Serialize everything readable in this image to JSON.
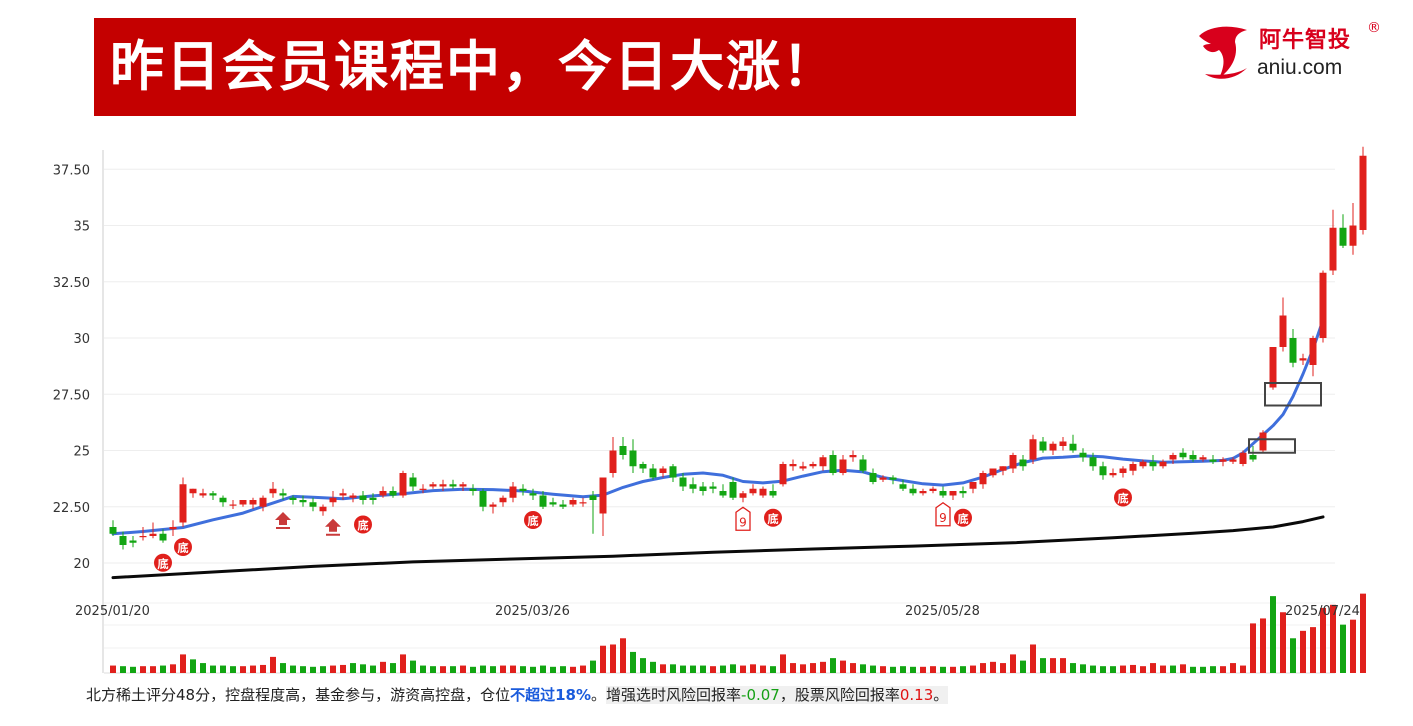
{
  "banner": {
    "title": "昨日会员课程中，今日大涨！"
  },
  "logo": {
    "name": "阿牛智投",
    "reg": "®",
    "url": "aniu.com",
    "icon": "bull-head-icon"
  },
  "colors": {
    "up": "#e0201c",
    "down": "#12a512",
    "ma_short": "#3f6fdc",
    "ma_long": "#0a0a0a",
    "banner": "#c40000"
  },
  "footer": {
    "p1": "北方稀土评分48分，控盘程度高，基金参与，游资高控盘，仓位",
    "highlight": "不超过18%",
    "p2": "。",
    "p3": "增强选时风险回报率",
    "v1": "-0.07",
    "p4": "，股票风险回报率",
    "v2": "0.13",
    "p5": "。"
  },
  "chart_data": {
    "type": "candlestick",
    "y_ticks": [
      "37.50",
      "35",
      "32.50",
      "30",
      "27.50",
      "25",
      "22.50",
      "20"
    ],
    "y_tick_values": [
      37.5,
      35,
      32.5,
      30,
      27.5,
      25,
      22.5,
      20
    ],
    "ylim": [
      18.8,
      38.8
    ],
    "x_labels": [
      {
        "label": "2025/01/20",
        "index": 0
      },
      {
        "label": "2025/03/26",
        "index": 42
      },
      {
        "label": "2025/05/28",
        "index": 83
      },
      {
        "label": "2025/07/24",
        "index": 121
      }
    ],
    "candles": [
      [
        21.6,
        21.9,
        21.3,
        21.2
      ],
      [
        21.2,
        21.4,
        20.8,
        20.6
      ],
      [
        21.0,
        21.2,
        20.9,
        20.7
      ],
      [
        21.2,
        21.6,
        21.2,
        21.0
      ],
      [
        21.2,
        21.8,
        21.3,
        21.1
      ],
      [
        21.3,
        21.5,
        21.0,
        20.9
      ],
      [
        21.5,
        21.9,
        21.6,
        21.2
      ],
      [
        21.8,
        23.8,
        23.5,
        21.6
      ],
      [
        23.1,
        23.3,
        23.3,
        22.9
      ],
      [
        23.0,
        23.3,
        23.1,
        22.9
      ],
      [
        23.1,
        23.2,
        23.0,
        22.8
      ],
      [
        22.9,
        23.0,
        22.7,
        22.5
      ],
      [
        22.6,
        22.8,
        22.6,
        22.4
      ],
      [
        22.6,
        22.8,
        22.8,
        22.5
      ],
      [
        22.6,
        22.9,
        22.8,
        22.4
      ],
      [
        22.5,
        23.0,
        22.9,
        22.3
      ],
      [
        23.1,
        23.6,
        23.3,
        22.9
      ],
      [
        23.1,
        23.3,
        23.0,
        22.8
      ],
      [
        22.9,
        23.0,
        22.8,
        22.6
      ],
      [
        22.8,
        23.0,
        22.7,
        22.5
      ],
      [
        22.7,
        22.9,
        22.5,
        22.3
      ],
      [
        22.3,
        22.6,
        22.5,
        22.1
      ],
      [
        22.7,
        23.2,
        22.9,
        22.5
      ],
      [
        23.0,
        23.3,
        23.1,
        22.8
      ],
      [
        22.9,
        23.1,
        23.0,
        22.7
      ],
      [
        23.0,
        23.2,
        22.8,
        22.6
      ],
      [
        22.9,
        23.1,
        22.8,
        22.6
      ],
      [
        23.0,
        23.4,
        23.2,
        22.9
      ],
      [
        23.2,
        23.4,
        23.0,
        22.9
      ],
      [
        23.0,
        24.1,
        24.0,
        22.9
      ],
      [
        23.8,
        24.0,
        23.4,
        23.2
      ],
      [
        23.3,
        23.5,
        23.3,
        23.1
      ],
      [
        23.4,
        23.6,
        23.5,
        23.3
      ],
      [
        23.4,
        23.7,
        23.5,
        23.2
      ],
      [
        23.5,
        23.7,
        23.4,
        23.3
      ],
      [
        23.4,
        23.6,
        23.5,
        23.2
      ],
      [
        23.3,
        23.5,
        23.2,
        23.0
      ],
      [
        23.2,
        23.3,
        22.5,
        22.3
      ],
      [
        22.5,
        22.7,
        22.6,
        22.2
      ],
      [
        22.7,
        23.0,
        22.9,
        22.5
      ],
      [
        22.9,
        23.6,
        23.4,
        22.7
      ],
      [
        23.3,
        23.5,
        23.2,
        23.0
      ],
      [
        23.1,
        23.3,
        23.0,
        22.8
      ],
      [
        23.0,
        23.2,
        22.5,
        22.4
      ],
      [
        22.7,
        22.9,
        22.6,
        22.5
      ],
      [
        22.6,
        22.8,
        22.5,
        22.4
      ],
      [
        22.6,
        22.9,
        22.8,
        22.5
      ],
      [
        22.7,
        22.9,
        22.7,
        22.5
      ],
      [
        23.0,
        23.2,
        22.8,
        21.3
      ],
      [
        22.2,
        23.8,
        23.8,
        21.2
      ],
      [
        24.0,
        25.6,
        25.0,
        23.8
      ],
      [
        25.2,
        25.6,
        24.8,
        24.6
      ],
      [
        25.0,
        25.5,
        24.3,
        24.0
      ],
      [
        24.4,
        24.5,
        24.2,
        24.0
      ],
      [
        24.2,
        24.4,
        23.8,
        23.7
      ],
      [
        24.0,
        24.3,
        24.2,
        23.8
      ],
      [
        24.3,
        24.4,
        23.8,
        23.6
      ],
      [
        23.8,
        24.0,
        23.4,
        23.2
      ],
      [
        23.5,
        23.8,
        23.3,
        23.1
      ],
      [
        23.4,
        23.6,
        23.2,
        23.0
      ],
      [
        23.4,
        23.6,
        23.3,
        23.1
      ],
      [
        23.2,
        23.5,
        23.0,
        22.9
      ],
      [
        23.6,
        23.8,
        22.9,
        22.8
      ],
      [
        22.9,
        23.2,
        23.1,
        22.7
      ],
      [
        23.1,
        23.5,
        23.3,
        23.0
      ],
      [
        23.0,
        23.4,
        23.3,
        22.9
      ],
      [
        23.2,
        23.5,
        23.0,
        22.9
      ],
      [
        23.5,
        24.5,
        24.4,
        23.4
      ],
      [
        24.3,
        24.6,
        24.4,
        24.1
      ],
      [
        24.2,
        24.5,
        24.3,
        24.1
      ],
      [
        24.3,
        24.5,
        24.4,
        24.2
      ],
      [
        24.3,
        24.8,
        24.7,
        24.1
      ],
      [
        24.8,
        25.0,
        24.0,
        23.9
      ],
      [
        24.0,
        24.8,
        24.6,
        23.9
      ],
      [
        24.7,
        25.0,
        24.8,
        24.5
      ],
      [
        24.6,
        24.8,
        24.1,
        24.0
      ],
      [
        24.0,
        24.2,
        23.6,
        23.5
      ],
      [
        23.7,
        23.9,
        23.8,
        23.6
      ],
      [
        23.8,
        23.9,
        23.7,
        23.5
      ],
      [
        23.5,
        23.7,
        23.3,
        23.2
      ],
      [
        23.3,
        23.5,
        23.1,
        23.0
      ],
      [
        23.1,
        23.3,
        23.2,
        23.0
      ],
      [
        23.2,
        23.4,
        23.3,
        23.1
      ],
      [
        23.2,
        23.4,
        23.0,
        22.9
      ],
      [
        23.0,
        23.2,
        23.2,
        22.8
      ],
      [
        23.2,
        23.4,
        23.1,
        22.9
      ],
      [
        23.3,
        23.6,
        23.6,
        23.1
      ],
      [
        23.5,
        24.1,
        24.0,
        23.3
      ],
      [
        23.9,
        24.2,
        24.2,
        23.8
      ],
      [
        24.1,
        24.3,
        24.3,
        23.9
      ],
      [
        24.2,
        24.9,
        24.8,
        24.0
      ],
      [
        24.6,
        24.8,
        24.3,
        24.1
      ],
      [
        24.6,
        25.7,
        25.5,
        24.4
      ],
      [
        25.4,
        25.6,
        25.0,
        24.9
      ],
      [
        25.0,
        25.4,
        25.3,
        24.8
      ],
      [
        25.2,
        25.6,
        25.4,
        25.0
      ],
      [
        25.3,
        25.7,
        25.0,
        24.9
      ],
      [
        24.9,
        25.1,
        24.7,
        24.5
      ],
      [
        24.7,
        24.9,
        24.3,
        24.1
      ],
      [
        24.3,
        24.5,
        23.9,
        23.7
      ],
      [
        23.9,
        24.2,
        24.0,
        23.8
      ],
      [
        24.0,
        24.3,
        24.2,
        23.8
      ],
      [
        24.1,
        24.5,
        24.4,
        23.9
      ],
      [
        24.3,
        24.6,
        24.5,
        24.2
      ],
      [
        24.5,
        24.8,
        24.3,
        24.1
      ],
      [
        24.3,
        24.6,
        24.5,
        24.2
      ],
      [
        24.6,
        24.9,
        24.8,
        24.4
      ],
      [
        24.9,
        25.1,
        24.7,
        24.6
      ],
      [
        24.8,
        25.0,
        24.6,
        24.5
      ],
      [
        24.6,
        24.8,
        24.7,
        24.5
      ],
      [
        24.6,
        24.8,
        24.5,
        24.4
      ],
      [
        24.5,
        24.7,
        24.6,
        24.3
      ],
      [
        24.5,
        24.7,
        24.6,
        24.4
      ],
      [
        24.4,
        25.0,
        24.9,
        24.3
      ],
      [
        24.8,
        25.2,
        24.6,
        24.5
      ],
      [
        25.0,
        25.9,
        25.8,
        24.9
      ],
      [
        27.8,
        28.5,
        29.6,
        27.7
      ],
      [
        29.6,
        31.8,
        31.0,
        29.4
      ],
      [
        30.0,
        30.4,
        28.9,
        28.7
      ],
      [
        29.0,
        29.3,
        29.1,
        28.8
      ],
      [
        28.8,
        30.1,
        30.0,
        28.3
      ],
      [
        30.0,
        33.0,
        32.9,
        29.8
      ],
      [
        33.0,
        35.7,
        34.9,
        32.8
      ],
      [
        34.9,
        35.5,
        34.1,
        34.0
      ],
      [
        34.1,
        36.0,
        35.0,
        33.7
      ],
      [
        34.8,
        38.5,
        38.1,
        34.6
      ]
    ],
    "ma_short": [
      [
        0,
        21.3
      ],
      [
        3,
        21.4
      ],
      [
        7,
        21.58
      ],
      [
        10,
        21.92
      ],
      [
        13,
        22.22
      ],
      [
        15,
        22.52
      ],
      [
        18,
        22.96
      ],
      [
        20,
        22.92
      ],
      [
        23,
        22.86
      ],
      [
        26,
        22.98
      ],
      [
        29,
        23.08
      ],
      [
        32,
        23.22
      ],
      [
        35,
        23.28
      ],
      [
        38,
        23.26
      ],
      [
        41,
        23.2
      ],
      [
        44,
        23.06
      ],
      [
        47,
        22.94
      ],
      [
        49,
        23.02
      ],
      [
        51,
        23.36
      ],
      [
        53,
        23.62
      ],
      [
        55,
        23.8
      ],
      [
        57,
        23.94
      ],
      [
        59,
        24.0
      ],
      [
        61,
        23.9
      ],
      [
        63,
        23.62
      ],
      [
        65,
        23.56
      ],
      [
        67,
        23.64
      ],
      [
        69,
        23.86
      ],
      [
        71,
        24.06
      ],
      [
        73,
        24.12
      ],
      [
        75,
        24.05
      ],
      [
        77,
        23.8
      ],
      [
        79,
        23.66
      ],
      [
        81,
        23.52
      ],
      [
        83,
        23.46
      ],
      [
        85,
        23.56
      ],
      [
        87,
        23.82
      ],
      [
        89,
        24.16
      ],
      [
        91,
        24.46
      ],
      [
        93,
        24.66
      ],
      [
        95,
        24.7
      ],
      [
        97,
        24.76
      ],
      [
        99,
        24.72
      ],
      [
        101,
        24.62
      ],
      [
        103,
        24.54
      ],
      [
        105,
        24.48
      ],
      [
        107,
        24.5
      ],
      [
        109,
        24.52
      ],
      [
        111,
        24.56
      ],
      [
        112,
        24.65
      ],
      [
        113,
        24.9
      ],
      [
        114,
        25.3
      ],
      [
        115,
        25.7
      ],
      [
        116,
        26.1
      ],
      [
        117,
        26.6
      ],
      [
        118,
        27.4
      ],
      [
        119,
        28.4
      ],
      [
        120,
        29.5
      ],
      [
        121,
        30.8
      ]
    ],
    "ma_long": [
      [
        0,
        19.35
      ],
      [
        10,
        19.6
      ],
      [
        20,
        19.85
      ],
      [
        30,
        20.05
      ],
      [
        40,
        20.18
      ],
      [
        50,
        20.3
      ],
      [
        60,
        20.48
      ],
      [
        70,
        20.62
      ],
      [
        80,
        20.75
      ],
      [
        90,
        20.9
      ],
      [
        100,
        21.12
      ],
      [
        108,
        21.32
      ],
      [
        112,
        21.44
      ],
      [
        116,
        21.6
      ],
      [
        119,
        21.84
      ],
      [
        121,
        22.05
      ]
    ],
    "volume": [
      [
        12,
        1
      ],
      [
        11,
        0
      ],
      [
        10,
        0
      ],
      [
        11,
        1
      ],
      [
        11,
        1
      ],
      [
        12,
        0
      ],
      [
        14,
        1
      ],
      [
        30,
        1
      ],
      [
        22,
        0
      ],
      [
        16,
        0
      ],
      [
        12,
        0
      ],
      [
        12,
        0
      ],
      [
        11,
        0
      ],
      [
        11,
        1
      ],
      [
        12,
        1
      ],
      [
        13,
        1
      ],
      [
        26,
        1
      ],
      [
        16,
        0
      ],
      [
        12,
        0
      ],
      [
        11,
        0
      ],
      [
        10,
        0
      ],
      [
        11,
        0
      ],
      [
        12,
        1
      ],
      [
        13,
        1
      ],
      [
        16,
        0
      ],
      [
        14,
        0
      ],
      [
        12,
        0
      ],
      [
        18,
        1
      ],
      [
        16,
        0
      ],
      [
        30,
        1
      ],
      [
        20,
        0
      ],
      [
        12,
        0
      ],
      [
        11,
        0
      ],
      [
        11,
        1
      ],
      [
        11,
        0
      ],
      [
        12,
        1
      ],
      [
        10,
        0
      ],
      [
        12,
        0
      ],
      [
        11,
        0
      ],
      [
        12,
        1
      ],
      [
        12,
        1
      ],
      [
        11,
        0
      ],
      [
        10,
        0
      ],
      [
        12,
        0
      ],
      [
        10,
        0
      ],
      [
        11,
        0
      ],
      [
        10,
        1
      ],
      [
        12,
        1
      ],
      [
        20,
        0
      ],
      [
        44,
        1
      ],
      [
        46,
        1
      ],
      [
        56,
        1
      ],
      [
        34,
        0
      ],
      [
        24,
        0
      ],
      [
        18,
        0
      ],
      [
        14,
        1
      ],
      [
        14,
        0
      ],
      [
        12,
        0
      ],
      [
        12,
        0
      ],
      [
        12,
        0
      ],
      [
        11,
        1
      ],
      [
        12,
        0
      ],
      [
        14,
        0
      ],
      [
        12,
        1
      ],
      [
        14,
        1
      ],
      [
        12,
        1
      ],
      [
        11,
        0
      ],
      [
        30,
        1
      ],
      [
        16,
        1
      ],
      [
        14,
        1
      ],
      [
        16,
        1
      ],
      [
        18,
        1
      ],
      [
        24,
        0
      ],
      [
        20,
        1
      ],
      [
        16,
        1
      ],
      [
        14,
        0
      ],
      [
        12,
        0
      ],
      [
        11,
        1
      ],
      [
        10,
        0
      ],
      [
        11,
        0
      ],
      [
        10,
        0
      ],
      [
        10,
        1
      ],
      [
        11,
        1
      ],
      [
        10,
        0
      ],
      [
        10,
        1
      ],
      [
        11,
        0
      ],
      [
        12,
        1
      ],
      [
        16,
        1
      ],
      [
        18,
        1
      ],
      [
        16,
        1
      ],
      [
        30,
        1
      ],
      [
        20,
        0
      ],
      [
        46,
        1
      ],
      [
        24,
        0
      ],
      [
        24,
        1
      ],
      [
        24,
        1
      ],
      [
        16,
        0
      ],
      [
        14,
        0
      ],
      [
        12,
        0
      ],
      [
        11,
        0
      ],
      [
        11,
        0
      ],
      [
        12,
        1
      ],
      [
        13,
        1
      ],
      [
        11,
        1
      ],
      [
        16,
        1
      ],
      [
        12,
        1
      ],
      [
        12,
        0
      ],
      [
        14,
        1
      ],
      [
        10,
        0
      ],
      [
        10,
        0
      ],
      [
        11,
        0
      ],
      [
        11,
        1
      ],
      [
        16,
        1
      ],
      [
        12,
        1
      ],
      [
        80,
        1
      ],
      [
        88,
        1
      ],
      [
        124,
        0
      ],
      [
        98,
        1
      ],
      [
        56,
        0
      ],
      [
        68,
        1
      ],
      [
        74,
        1
      ],
      [
        105,
        1
      ],
      [
        110,
        1
      ],
      [
        78,
        0
      ],
      [
        86,
        1
      ],
      [
        128,
        1
      ]
    ],
    "markers": [
      {
        "type": "di",
        "text": "底",
        "index": 5
      },
      {
        "type": "di",
        "text": "底",
        "index": 7
      },
      {
        "type": "arrow",
        "index": 17
      },
      {
        "type": "arrow",
        "index": 22
      },
      {
        "type": "di",
        "text": "底",
        "index": 25
      },
      {
        "type": "di",
        "text": "底",
        "index": 42
      },
      {
        "type": "nine",
        "text": "9",
        "index": 63
      },
      {
        "type": "di",
        "text": "底",
        "index": 66
      },
      {
        "type": "nine",
        "text": "9",
        "index": 83
      },
      {
        "type": "di",
        "text": "底",
        "index": 85
      },
      {
        "type": "di",
        "text": "底",
        "index": 101
      }
    ],
    "boxes": [
      {
        "i1": 113.6,
        "i2": 118.2,
        "y1": 24.9,
        "y2": 25.5
      },
      {
        "i1": 115.2,
        "i2": 120.8,
        "y1": 27.0,
        "y2": 28.0
      }
    ],
    "grid": true
  }
}
